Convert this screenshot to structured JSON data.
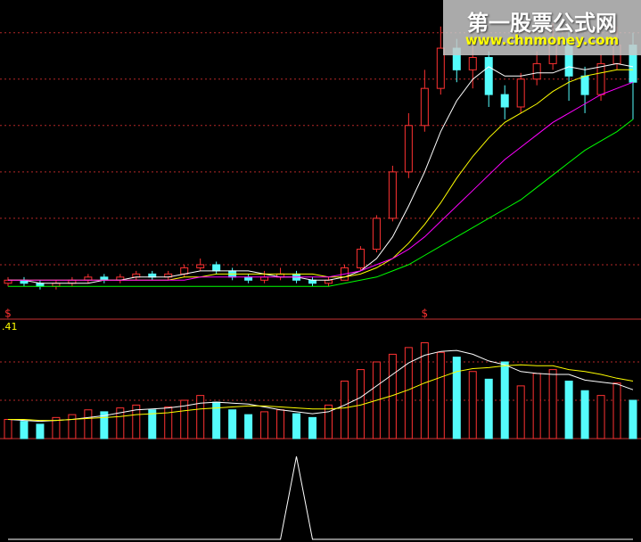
{
  "watermark": {
    "title": "第一股票公式网",
    "url": "www.chnmoney.com"
  },
  "chart_data": [
    {
      "type": "candlestick",
      "open": [
        9,
        10,
        9,
        8,
        9,
        10,
        11,
        10,
        11,
        12,
        11,
        12,
        14,
        15,
        13,
        11,
        10,
        11,
        12,
        10,
        9,
        10,
        14,
        20,
        30,
        45,
        60,
        72,
        85,
        78,
        82,
        70,
        66,
        75,
        80,
        88,
        76,
        70,
        80,
        86
      ],
      "high": [
        11,
        11,
        10,
        10,
        11,
        12,
        12,
        12,
        13,
        13,
        13,
        15,
        17,
        16,
        14,
        12,
        13,
        14,
        13,
        11,
        11,
        15,
        21,
        31,
        47,
        64,
        78,
        92,
        88,
        86,
        84,
        73,
        77,
        84,
        93,
        92,
        79,
        83,
        92,
        90
      ],
      "low": [
        8,
        8,
        7,
        7,
        8,
        9,
        9,
        9,
        10,
        10,
        10,
        11,
        13,
        12,
        10,
        9,
        9,
        10,
        9,
        8,
        8,
        10,
        13,
        19,
        29,
        43,
        58,
        70,
        74,
        72,
        66,
        62,
        64,
        73,
        78,
        68,
        64,
        68,
        78,
        62
      ],
      "close": [
        10,
        9,
        8,
        9,
        10,
        11,
        10,
        11,
        12,
        11,
        12,
        14,
        15,
        13,
        11,
        10,
        11,
        12,
        10,
        9,
        10,
        14,
        20,
        30,
        45,
        60,
        72,
        85,
        78,
        82,
        70,
        66,
        75,
        80,
        88,
        76,
        70,
        80,
        86,
        74
      ],
      "up_color": "#ff3232",
      "down_color": "#54fcfc",
      "lines": [
        {
          "color": "#ffffff",
          "values": [
            10,
            10,
            9,
            9,
            9,
            9,
            10,
            10,
            11,
            11,
            11,
            12,
            13,
            13,
            13,
            13,
            12,
            11,
            11,
            10,
            10,
            11,
            13,
            17,
            24,
            34,
            45,
            58,
            68,
            75,
            79,
            76,
            76,
            77,
            77,
            79,
            78,
            79,
            80,
            79
          ]
        },
        {
          "color": "#ffff00",
          "values": [
            10,
            10,
            10,
            10,
            10,
            10,
            10,
            10,
            10,
            10,
            10,
            11,
            11,
            12,
            12,
            12,
            12,
            12,
            12,
            12,
            11,
            11,
            12,
            14,
            17,
            22,
            28,
            35,
            43,
            50,
            56,
            61,
            64,
            67,
            71,
            74,
            76,
            77,
            78,
            78
          ]
        },
        {
          "color": "#ff00ff",
          "values": [
            10,
            10,
            10,
            10,
            10,
            10,
            10,
            10,
            10,
            10,
            10,
            10,
            11,
            11,
            11,
            11,
            11,
            11,
            11,
            11,
            11,
            12,
            13,
            15,
            17,
            20,
            24,
            29,
            34,
            39,
            44,
            49,
            53,
            57,
            61,
            64,
            67,
            70,
            72,
            74
          ]
        },
        {
          "color": "#00ff00",
          "values": [
            8,
            8,
            8,
            8,
            8,
            8,
            8,
            8,
            8,
            8,
            8,
            8,
            8,
            8,
            8,
            8,
            8,
            8,
            8,
            8,
            8,
            9,
            10,
            11,
            13,
            15,
            18,
            21,
            24,
            27,
            30,
            33,
            36,
            40,
            44,
            48,
            52,
            55,
            58,
            62
          ]
        }
      ],
      "ylim": [
        0,
        100
      ],
      "yticks": [
        15,
        30,
        45,
        60,
        75,
        90
      ],
      "grid": true,
      "markers": [
        {
          "index": 0,
          "label": "$"
        },
        {
          "index": 26,
          "label": "$"
        }
      ]
    },
    {
      "type": "bar",
      "label": ".41",
      "values": [
        20,
        18,
        15,
        22,
        25,
        30,
        28,
        32,
        35,
        30,
        33,
        40,
        45,
        38,
        30,
        25,
        28,
        30,
        26,
        22,
        35,
        60,
        72,
        80,
        88,
        95,
        100,
        90,
        85,
        70,
        62,
        80,
        55,
        68,
        72,
        60,
        50,
        45,
        58,
        40
      ],
      "lines": [
        {
          "color": "#ffffff",
          "values": [
            20,
            19,
            18,
            19,
            20,
            22,
            24,
            27,
            30,
            31,
            32,
            34,
            37,
            38,
            37,
            36,
            33,
            30,
            28,
            26,
            28,
            35,
            43,
            55,
            67,
            79,
            87,
            91,
            92,
            88,
            81,
            77,
            70,
            68,
            67,
            67,
            61,
            59,
            57,
            51
          ]
        },
        {
          "color": "#ffff00",
          "values": [
            20,
            20,
            19,
            19,
            20,
            21,
            22,
            23,
            25,
            26,
            27,
            29,
            31,
            32,
            33,
            34,
            34,
            33,
            32,
            31,
            31,
            32,
            35,
            40,
            45,
            51,
            58,
            64,
            70,
            73,
            74,
            76,
            77,
            76,
            76,
            72,
            70,
            67,
            63,
            60
          ]
        }
      ],
      "ylim": [
        0,
        100
      ],
      "yticks": [
        40,
        80
      ],
      "grid": true
    },
    {
      "type": "line",
      "color": "#ffffff",
      "values": [
        0,
        0,
        0,
        0,
        0,
        0,
        0,
        0,
        0,
        0,
        0,
        0,
        0,
        0,
        0,
        0,
        0,
        0,
        100,
        0,
        0,
        0,
        0,
        0,
        0,
        0,
        0,
        0,
        0,
        0,
        0,
        0,
        0,
        0,
        0,
        0,
        0,
        0,
        0,
        0
      ],
      "ylim": [
        0,
        100
      ]
    }
  ]
}
